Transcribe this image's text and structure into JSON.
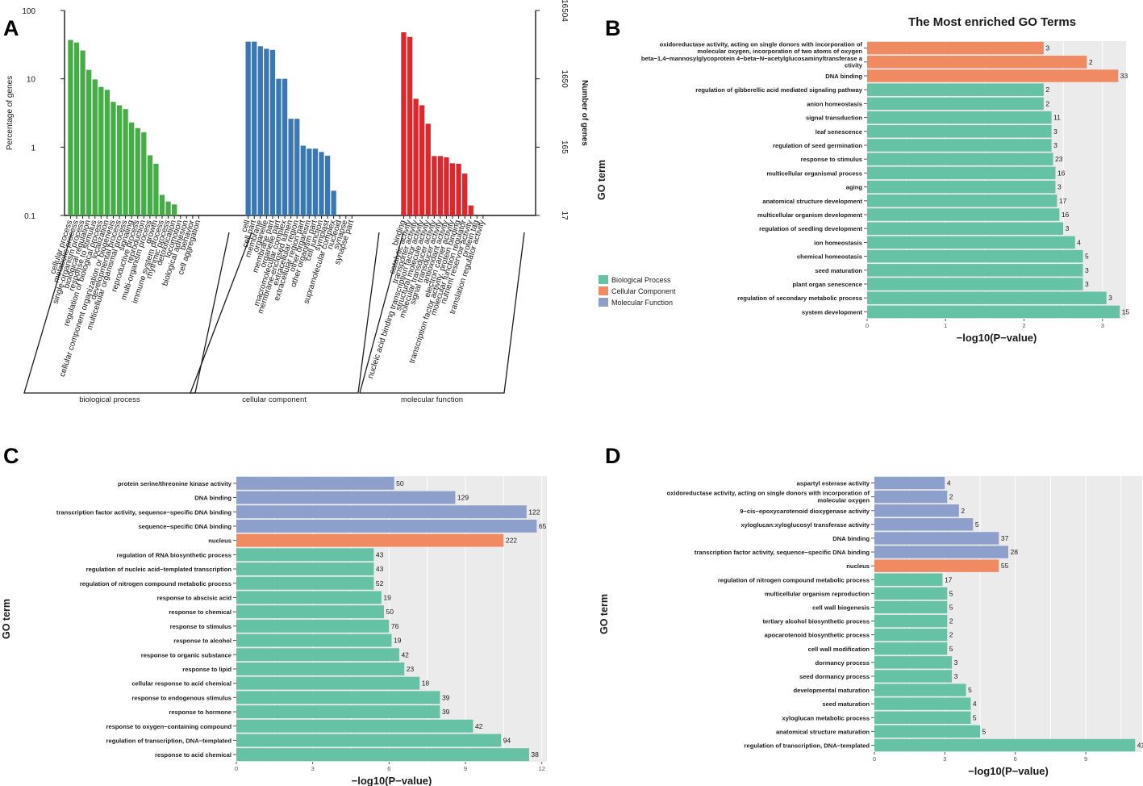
{
  "colors": {
    "bp_green": "#45ad45",
    "cc_blue": "#3978b4",
    "mf_red": "#e0262a",
    "bio": "#66c2a4",
    "cell": "#f08a63",
    "mol": "#8da0cb",
    "panel_bg": "#ebebeb"
  },
  "chart_data": [
    {
      "panel": "A",
      "type": "bar",
      "yscale": "log",
      "ylabel": "Percentage of genes",
      "y2label": "Number of genes",
      "yticks": [
        "100",
        "10",
        "1",
        "0.1"
      ],
      "y2ticks": [
        "16504",
        "1650",
        "165",
        "17"
      ],
      "ylim": [
        0.1,
        100
      ],
      "groups": [
        {
          "name": "biological process",
          "categories": [
            "cellular process",
            "metabolic process",
            "single-organism process",
            "biological regulation",
            "response to stimulus",
            "regulation of biological process",
            "localization",
            "cellular component organization or biogenesis",
            "developmental process",
            "multicellular organismal process",
            "signaling",
            "reproductive process",
            "reproduction",
            "multi-organism process",
            "growth",
            "immune system process",
            "rhythmic process",
            "detoxification",
            "locomotion",
            "biological adhesion",
            "behavior",
            "cell aggregation"
          ],
          "values": [
            37,
            34,
            26,
            13.5,
            9.8,
            7.6,
            6.9,
            4.6,
            4.1,
            3.6,
            2.3,
            1.9,
            1.65,
            0.76,
            0.57,
            0.2,
            0.16,
            0.145,
            0,
            0,
            0,
            0
          ]
        },
        {
          "name": "cellular component",
          "categories": [
            "cell",
            "cell part",
            "membrane",
            "organelle",
            "membrane part",
            "organelle part",
            "macromolecular complex",
            "membrane-enclosed lumen",
            "extracellular region",
            "extracellular region part",
            "other organism",
            "other organism part",
            "cell junction",
            "symplast",
            "supramolecular complex",
            "nucleoid",
            "synapse",
            "synapse part"
          ],
          "values": [
            35,
            35,
            30,
            27.5,
            26.5,
            10,
            10,
            2.6,
            2.6,
            1.05,
            0.95,
            0.95,
            0.85,
            0.75,
            0.23,
            0,
            0,
            0
          ]
        },
        {
          "name": "molecular function",
          "categories": [
            "binding",
            "catalytic activity",
            "transporter activity",
            "nucleic acid binding transcription factor activity",
            "structural molecule activity",
            "molecular transducer activity",
            "signal transducer activity",
            "antioxidant activity",
            "electron carrier activity",
            "transcription factor activity, protein binding",
            "molecular function regulator",
            "nutrient reservoir activity",
            "protein tag",
            "translation regulator activity"
          ],
          "values": [
            48,
            41,
            5.1,
            4.1,
            2.2,
            0.74,
            0.74,
            0.71,
            0.58,
            0.57,
            0.41,
            0.14,
            0,
            0
          ]
        }
      ]
    },
    {
      "panel": "B",
      "type": "bar",
      "orientation": "horizontal",
      "title": "The Most enriched GO Terms",
      "xlabel": "−log10(P−value)",
      "ylabel": "GO term",
      "xlim": [
        0,
        3.3
      ],
      "xticks": [
        0,
        1,
        2,
        3
      ],
      "legend": [
        "Biological Process",
        "Cellular Component",
        "Molecular Function"
      ],
      "bars": [
        {
          "term": [
            "oxidoreductase activity, acting on single donors with incorporation of",
            "molecular oxygen, incorporation of two atoms of oxygen"
          ],
          "value": 2.25,
          "count": "3",
          "cat": "cell"
        },
        {
          "term": [
            "beta−1,4−mannosylglycoprotein 4−beta−N−acetylglucosaminyltransferase a",
            "ctivity"
          ],
          "value": 2.8,
          "count": "2",
          "cat": "cell"
        },
        {
          "term": [
            "DNA binding"
          ],
          "value": 3.2,
          "count": "33",
          "cat": "cell"
        },
        {
          "term": [
            "regulation of gibberellic acid mediated signaling pathway"
          ],
          "value": 2.25,
          "count": "2",
          "cat": "bio"
        },
        {
          "term": [
            "anion homeostasis"
          ],
          "value": 2.25,
          "count": "2",
          "cat": "bio"
        },
        {
          "term": [
            "signal transduction"
          ],
          "value": 2.35,
          "count": "11",
          "cat": "bio"
        },
        {
          "term": [
            "leaf senescence"
          ],
          "value": 2.35,
          "count": "3",
          "cat": "bio"
        },
        {
          "term": [
            "regulation of seed germination"
          ],
          "value": 2.35,
          "count": "3",
          "cat": "bio"
        },
        {
          "term": [
            "response to stimulus"
          ],
          "value": 2.37,
          "count": "23",
          "cat": "bio"
        },
        {
          "term": [
            "multicellular organismal process"
          ],
          "value": 2.4,
          "count": "16",
          "cat": "bio"
        },
        {
          "term": [
            "aging"
          ],
          "value": 2.4,
          "count": "3",
          "cat": "bio"
        },
        {
          "term": [
            "anatomical structure development"
          ],
          "value": 2.42,
          "count": "17",
          "cat": "bio"
        },
        {
          "term": [
            "multicellular organism development"
          ],
          "value": 2.45,
          "count": "16",
          "cat": "bio"
        },
        {
          "term": [
            "regulation of seedling development"
          ],
          "value": 2.5,
          "count": "3",
          "cat": "bio"
        },
        {
          "term": [
            "ion homeostasis"
          ],
          "value": 2.65,
          "count": "4",
          "cat": "bio"
        },
        {
          "term": [
            "chemical homeostasis"
          ],
          "value": 2.75,
          "count": "5",
          "cat": "bio"
        },
        {
          "term": [
            "seed maturation"
          ],
          "value": 2.75,
          "count": "3",
          "cat": "bio"
        },
        {
          "term": [
            "plant organ senescence"
          ],
          "value": 2.75,
          "count": "3",
          "cat": "bio"
        },
        {
          "term": [
            "regulation of secondary metabolic process"
          ],
          "value": 3.05,
          "count": "3",
          "cat": "bio"
        },
        {
          "term": [
            "system development"
          ],
          "value": 3.22,
          "count": "15",
          "cat": "bio"
        }
      ]
    },
    {
      "panel": "C",
      "type": "bar",
      "orientation": "horizontal",
      "xlabel": "−log10(P−value)",
      "ylabel": "GO term",
      "xlim": [
        0,
        12.2
      ],
      "xticks": [
        0,
        3,
        6,
        9,
        12
      ],
      "bars": [
        {
          "term": [
            "protein serine/threonine kinase activity"
          ],
          "value": 6.2,
          "count": "50",
          "cat": "mol"
        },
        {
          "term": [
            "DNA binding"
          ],
          "value": 8.6,
          "count": "129",
          "cat": "mol"
        },
        {
          "term": [
            "transcription factor activity, sequence−specific DNA binding"
          ],
          "value": 11.4,
          "count": "122",
          "cat": "mol"
        },
        {
          "term": [
            "sequence−specific DNA binding"
          ],
          "value": 11.8,
          "count": "65",
          "cat": "mol"
        },
        {
          "term": [
            "nucleus"
          ],
          "value": 10.5,
          "count": "222",
          "cat": "cell"
        },
        {
          "term": [
            "regulation of RNA biosynthetic process"
          ],
          "value": 5.4,
          "count": "43",
          "cat": "bio"
        },
        {
          "term": [
            "regulation of nucleic acid−templated transcription"
          ],
          "value": 5.4,
          "count": "43",
          "cat": "bio"
        },
        {
          "term": [
            "regulation of nitrogen compound metabolic process"
          ],
          "value": 5.4,
          "count": "52",
          "cat": "bio"
        },
        {
          "term": [
            "response to abscisic acid"
          ],
          "value": 5.7,
          "count": "19",
          "cat": "bio"
        },
        {
          "term": [
            "response to chemical"
          ],
          "value": 5.8,
          "count": "50",
          "cat": "bio"
        },
        {
          "term": [
            "response to stimulus"
          ],
          "value": 6.0,
          "count": "76",
          "cat": "bio"
        },
        {
          "term": [
            "response to alcohol"
          ],
          "value": 6.1,
          "count": "19",
          "cat": "bio"
        },
        {
          "term": [
            "response to organic substance"
          ],
          "value": 6.4,
          "count": "42",
          "cat": "bio"
        },
        {
          "term": [
            "response to lipid"
          ],
          "value": 6.6,
          "count": "23",
          "cat": "bio"
        },
        {
          "term": [
            "cellular response to acid chemical"
          ],
          "value": 7.2,
          "count": "18",
          "cat": "bio"
        },
        {
          "term": [
            "response to endogenous stimulus"
          ],
          "value": 8.0,
          "count": "39",
          "cat": "bio"
        },
        {
          "term": [
            "response to hormone"
          ],
          "value": 8.0,
          "count": "39",
          "cat": "bio"
        },
        {
          "term": [
            "response to oxygen−containing compound"
          ],
          "value": 9.3,
          "count": "42",
          "cat": "bio"
        },
        {
          "term": [
            "regulation of transcription, DNA−templated"
          ],
          "value": 10.4,
          "count": "94",
          "cat": "bio"
        },
        {
          "term": [
            "response to acid chemical"
          ],
          "value": 11.5,
          "count": "38",
          "cat": "bio"
        }
      ]
    },
    {
      "panel": "D",
      "type": "bar",
      "orientation": "horizontal",
      "xlabel": "−log10(P−value)",
      "ylabel": "GO term",
      "xlim": [
        0,
        11.4
      ],
      "xticks": [
        0,
        3,
        6,
        9
      ],
      "bars": [
        {
          "term": [
            "aspartyl esterase activity"
          ],
          "value": 3.0,
          "count": "4",
          "cat": "mol"
        },
        {
          "term": [
            "oxidoreductase activity, acting on single donors with incorporation of",
            "molecular oxygen"
          ],
          "value": 3.1,
          "count": "2",
          "cat": "mol"
        },
        {
          "term": [
            "9−cis−epoxycarotenoid dioxygenase activity"
          ],
          "value": 3.6,
          "count": "2",
          "cat": "mol"
        },
        {
          "term": [
            "xyloglucan:xyloglucosyl transferase activity"
          ],
          "value": 4.2,
          "count": "5",
          "cat": "mol"
        },
        {
          "term": [
            "DNA binding"
          ],
          "value": 5.3,
          "count": "37",
          "cat": "mol"
        },
        {
          "term": [
            "transcription factor activity, sequence−specific DNA binding"
          ],
          "value": 5.7,
          "count": "28",
          "cat": "mol"
        },
        {
          "term": [
            "nucleus"
          ],
          "value": 5.3,
          "count": "55",
          "cat": "cell"
        },
        {
          "term": [
            "regulation of nitrogen compound metabolic process"
          ],
          "value": 2.9,
          "count": "17",
          "cat": "bio"
        },
        {
          "term": [
            "multicellular organism reproduction"
          ],
          "value": 3.1,
          "count": "5",
          "cat": "bio"
        },
        {
          "term": [
            "cell wall biogenesis"
          ],
          "value": 3.1,
          "count": "5",
          "cat": "bio"
        },
        {
          "term": [
            "tertiary alcohol biosynthetic process"
          ],
          "value": 3.1,
          "count": "2",
          "cat": "bio"
        },
        {
          "term": [
            "apocarotenoid biosynthetic process"
          ],
          "value": 3.1,
          "count": "2",
          "cat": "bio"
        },
        {
          "term": [
            "cell wall modification"
          ],
          "value": 3.1,
          "count": "5",
          "cat": "bio"
        },
        {
          "term": [
            "dormancy process"
          ],
          "value": 3.3,
          "count": "3",
          "cat": "bio"
        },
        {
          "term": [
            "seed dormancy process"
          ],
          "value": 3.3,
          "count": "3",
          "cat": "bio"
        },
        {
          "term": [
            "developmental maturation"
          ],
          "value": 3.9,
          "count": "5",
          "cat": "bio"
        },
        {
          "term": [
            "seed maturation"
          ],
          "value": 4.1,
          "count": "4",
          "cat": "bio"
        },
        {
          "term": [
            "xyloglucan metabolic process"
          ],
          "value": 4.1,
          "count": "5",
          "cat": "bio"
        },
        {
          "term": [
            "anatomical structure maturation"
          ],
          "value": 4.5,
          "count": "5",
          "cat": "bio"
        },
        {
          "term": [
            "regulation of transcription, DNA−templated"
          ],
          "value": 11.1,
          "count": "41",
          "cat": "bio"
        }
      ]
    }
  ]
}
